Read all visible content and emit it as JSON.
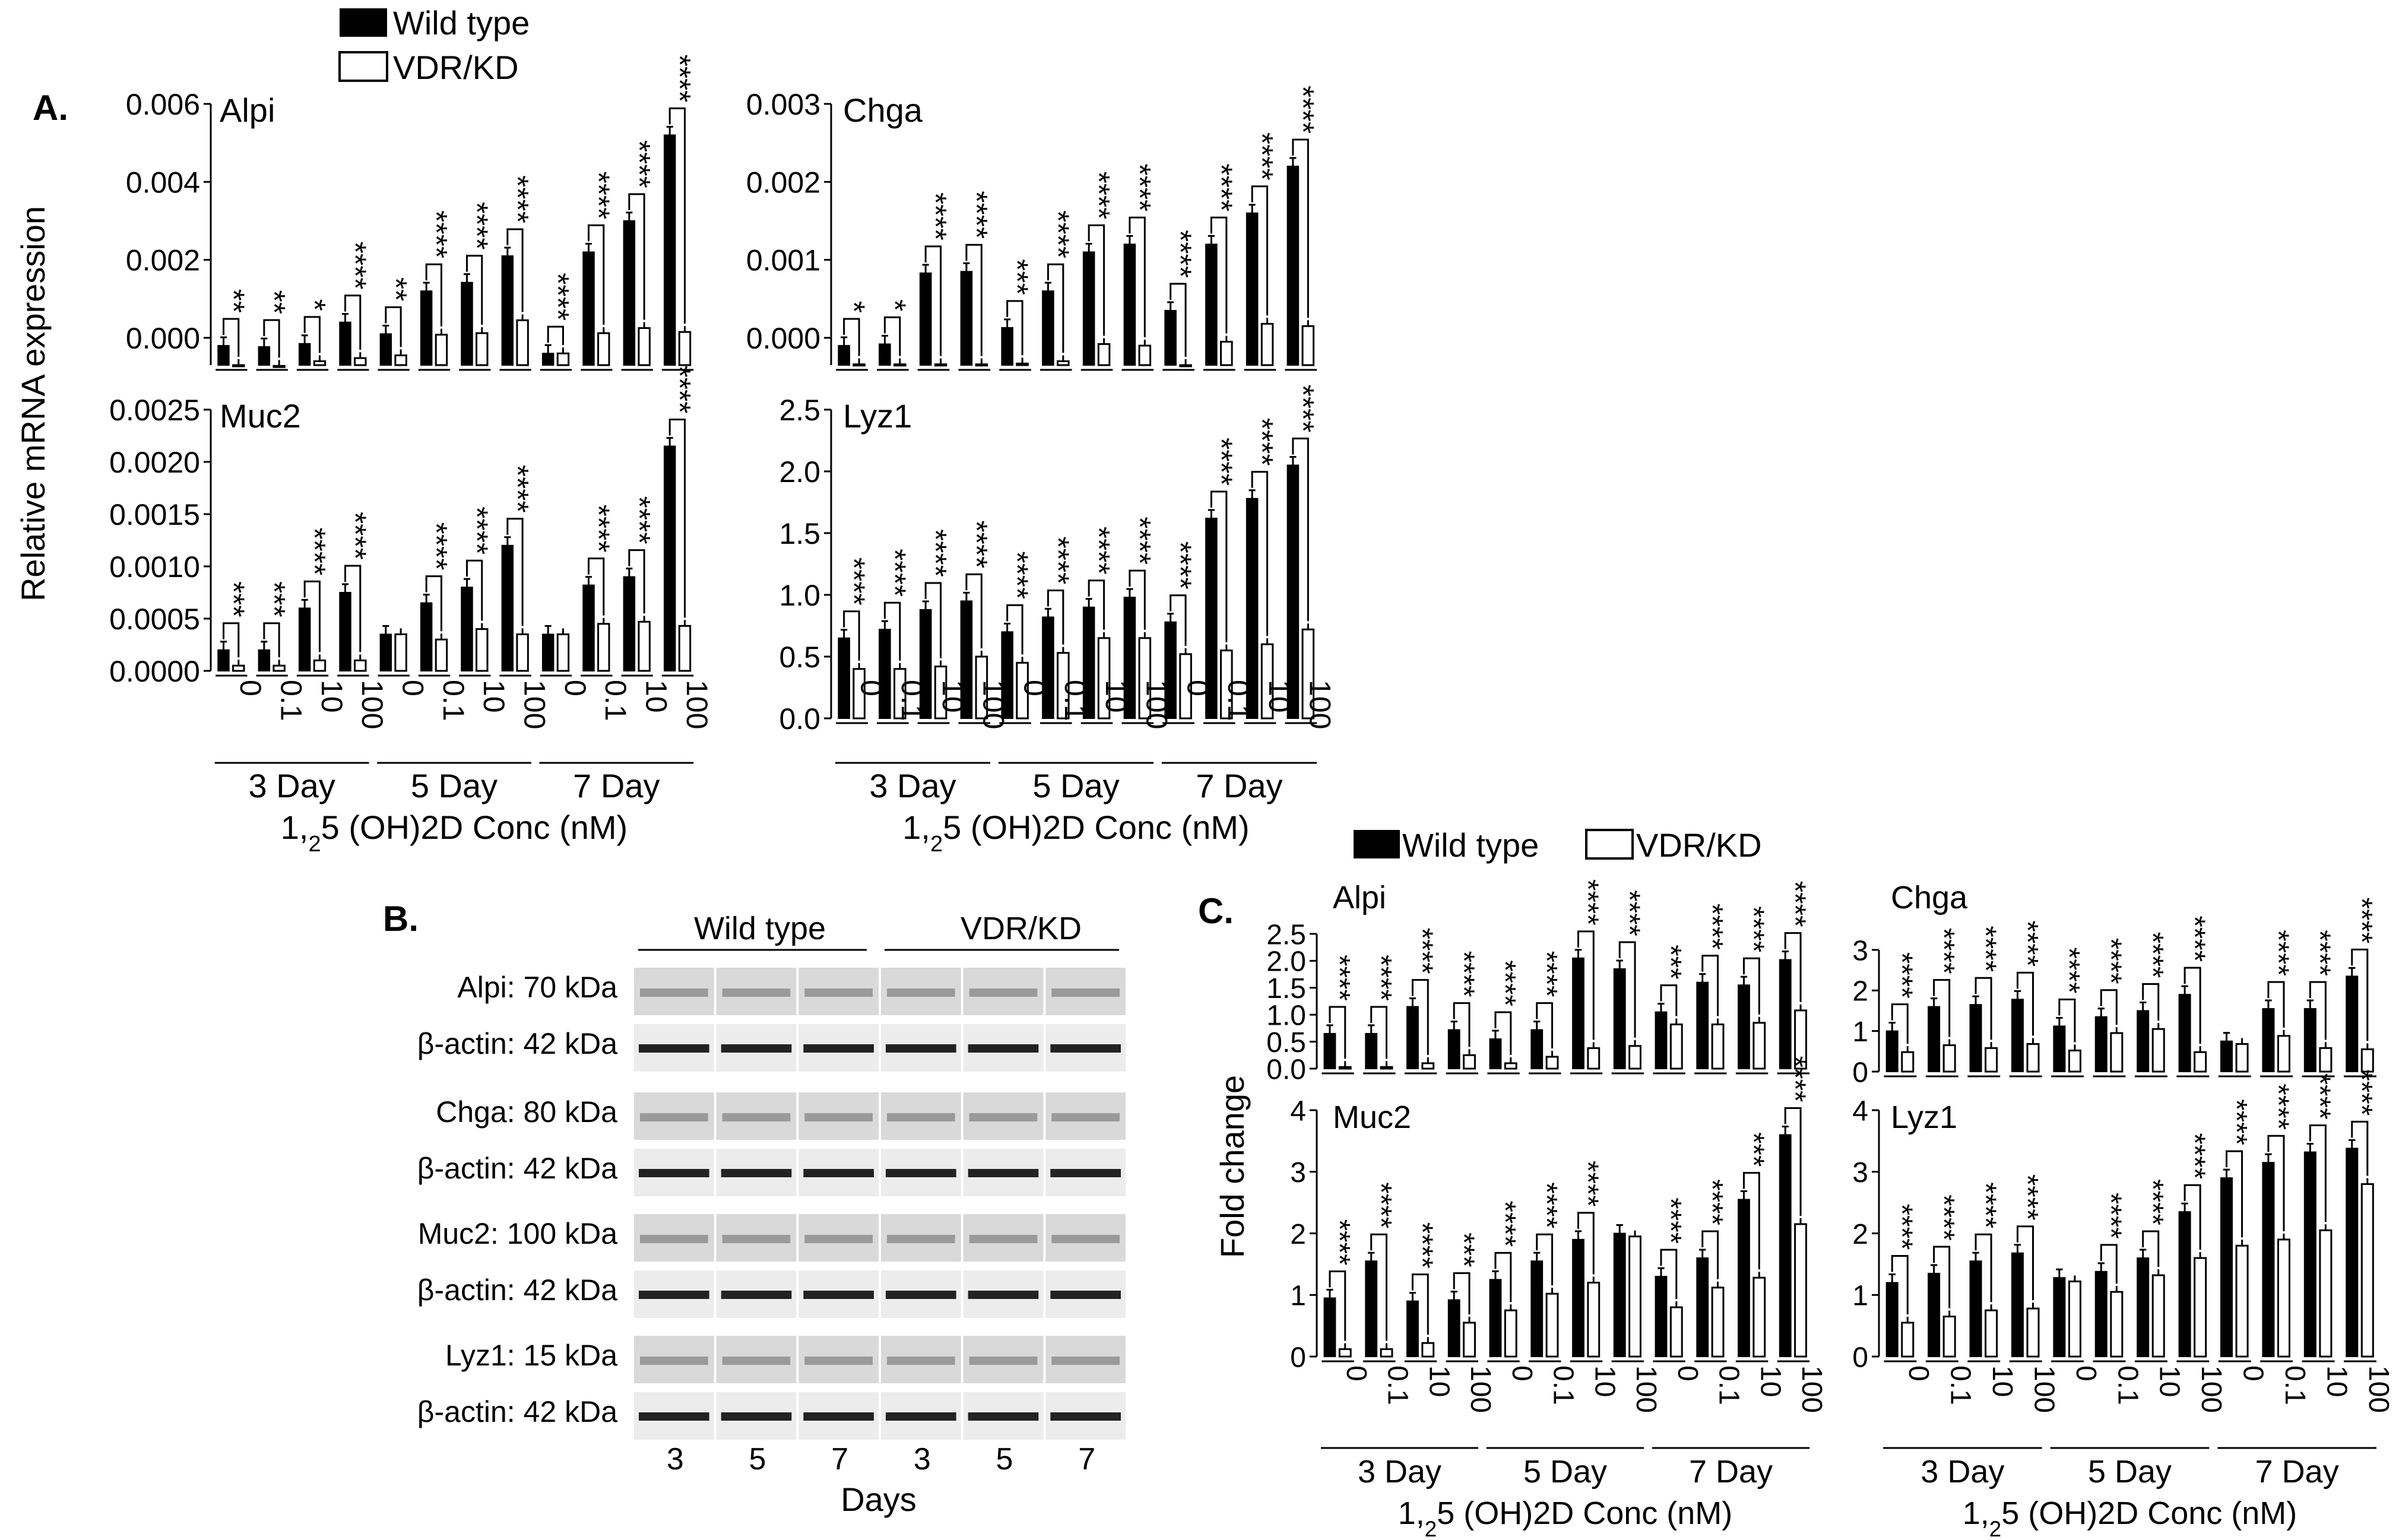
{
  "legend": {
    "wild_type": "Wild type",
    "vdr_kd": "VDR/KD"
  },
  "panels": {
    "a": "A.",
    "b": "B.",
    "c": "C."
  },
  "shared": {
    "ylabel_a": "Relative mRNA expression",
    "ylabel_c": "Fold change",
    "xlabel": "1,25 (OH)2D Conc (nM)",
    "day_labels": [
      "3 Day",
      "5 Day",
      "7 Day"
    ],
    "conc_labels": [
      "0",
      "0.1",
      "10",
      "100"
    ]
  },
  "chart_data": [
    {
      "id": "A-Alpi",
      "type": "bar",
      "title": "Alpi",
      "ylim": [
        -0.0007,
        0.006
      ],
      "ticks": [
        "0.000",
        "0.002",
        "0.004",
        "0.006"
      ],
      "tick_values": [
        0,
        0.002,
        0.004,
        0.006
      ],
      "categories": [
        "3 Day 0",
        "3 Day 0.1",
        "3 Day 10",
        "3 Day 100",
        "5 Day 0",
        "5 Day 0.1",
        "5 Day 10",
        "5 Day 100",
        "7 Day 0",
        "7 Day 0.1",
        "7 Day 10",
        "7 Day 100"
      ],
      "series": [
        {
          "name": "Wild type",
          "values": [
            -0.0002,
            -0.00023,
            -0.00015,
            0.0004,
            0.0001,
            0.0012,
            0.00142,
            0.0021,
            -0.0004,
            0.0022,
            0.003,
            0.0052
          ]
        },
        {
          "name": "VDR/KD",
          "values": [
            -0.0007,
            -0.00072,
            -0.0006,
            -0.00052,
            -0.00045,
            8e-05,
            0.00012,
            0.00045,
            -0.0004,
            0.00012,
            0.00025,
            0.00015
          ]
        }
      ],
      "sig": [
        "**",
        "**",
        "*",
        "****",
        "**",
        "****",
        "****",
        "****",
        "****",
        "****",
        "****",
        "****"
      ]
    },
    {
      "id": "A-Chga",
      "type": "bar",
      "title": "Chga",
      "ylim": [
        -0.00035,
        0.003
      ],
      "ticks": [
        "0.000",
        "0.001",
        "0.002",
        "0.003"
      ],
      "tick_values": [
        0,
        0.001,
        0.002,
        0.003
      ],
      "categories": [
        "3 Day 0",
        "3 Day 0.1",
        "3 Day 10",
        "3 Day 100",
        "5 Day 0",
        "5 Day 0.1",
        "5 Day 10",
        "5 Day 100",
        "7 Day 0",
        "7 Day 0.1",
        "7 Day 10",
        "7 Day 100"
      ],
      "series": [
        {
          "name": "Wild type",
          "values": [
            -0.0001,
            -8e-05,
            0.00083,
            0.00085,
            0.00013,
            0.0006,
            0.0011,
            0.0012,
            0.00035,
            0.0012,
            0.0016,
            0.0022
          ]
        },
        {
          "name": "VDR/KD",
          "values": [
            -0.00034,
            -0.00034,
            -0.00034,
            -0.00034,
            -0.00033,
            -0.0003,
            -8e-05,
            -0.0001,
            -0.00035,
            -5e-05,
            0.00018,
            0.00015
          ]
        }
      ],
      "sig": [
        "*",
        "*",
        "****",
        "****",
        "***",
        "****",
        "****",
        "****",
        "****",
        "****",
        "****",
        "****"
      ]
    },
    {
      "id": "A-Muc2",
      "type": "bar",
      "title": "Muc2",
      "ylim": [
        0,
        0.0025
      ],
      "ticks": [
        "0.0000",
        "0.0005",
        "0.0010",
        "0.0015",
        "0.0020",
        "0.0025"
      ],
      "tick_values": [
        0,
        0.0005,
        0.001,
        0.0015,
        0.002,
        0.0025
      ],
      "categories": [
        "3 Day 0",
        "3 Day 0.1",
        "3 Day 10",
        "3 Day 100",
        "5 Day 0",
        "5 Day 0.1",
        "5 Day 10",
        "5 Day 100",
        "7 Day 0",
        "7 Day 0.1",
        "7 Day 10",
        "7 Day 100"
      ],
      "series": [
        {
          "name": "Wild type",
          "values": [
            0.0002,
            0.0002,
            0.0006,
            0.00075,
            0.00035,
            0.00065,
            0.0008,
            0.0012,
            0.00035,
            0.00082,
            0.0009,
            0.00215
          ]
        },
        {
          "name": "VDR/KD",
          "values": [
            5e-05,
            5e-05,
            0.0001,
            0.0001,
            0.00035,
            0.0003,
            0.0004,
            0.00035,
            0.00035,
            0.00045,
            0.00047,
            0.00043
          ]
        }
      ],
      "sig": [
        "***",
        "***",
        "****",
        "****",
        "",
        "****",
        "****",
        "****",
        "",
        "****",
        "****",
        "****"
      ]
    },
    {
      "id": "A-Lyz1",
      "type": "bar",
      "title": "Lyz1",
      "ylim": [
        0,
        2.5
      ],
      "ticks": [
        "0.0",
        "0.5",
        "1.0",
        "1.5",
        "2.0",
        "2.5"
      ],
      "tick_values": [
        0,
        0.5,
        1.0,
        1.5,
        2.0,
        2.5
      ],
      "categories": [
        "3 Day 0",
        "3 Day 0.1",
        "3 Day 10",
        "3 Day 100",
        "5 Day 0",
        "5 Day 0.1",
        "5 Day 10",
        "5 Day 100",
        "7 Day 0",
        "7 Day 0.1",
        "7 Day 10",
        "7 Day 100"
      ],
      "series": [
        {
          "name": "Wild type",
          "values": [
            0.65,
            0.72,
            0.88,
            0.95,
            0.7,
            0.82,
            0.9,
            0.98,
            0.78,
            1.62,
            1.78,
            2.05
          ]
        },
        {
          "name": "VDR/KD",
          "values": [
            0.4,
            0.4,
            0.42,
            0.5,
            0.45,
            0.53,
            0.65,
            0.65,
            0.52,
            0.55,
            0.6,
            0.72
          ]
        }
      ],
      "sig": [
        "****",
        "****",
        "****",
        "****",
        "****",
        "****",
        "****",
        "****",
        "****",
        "****",
        "****",
        "****"
      ]
    },
    {
      "id": "C-Alpi",
      "type": "bar",
      "title": "Alpi",
      "ylim": [
        0,
        2.5
      ],
      "ticks": [
        "0.0",
        "0.5",
        "1.0",
        "1.5",
        "2.0",
        "2.5"
      ],
      "tick_values": [
        0,
        0.5,
        1.0,
        1.5,
        2.0,
        2.5
      ],
      "categories": [
        "3 Day 0",
        "3 Day 0.1",
        "3 Day 10",
        "3 Day 100",
        "5 Day 0",
        "5 Day 0.1",
        "5 Day 10",
        "5 Day 100",
        "7 Day 0",
        "7 Day 0.1",
        "7 Day 10",
        "7 Day 100"
      ],
      "series": [
        {
          "name": "Wild type",
          "values": [
            0.65,
            0.65,
            1.15,
            0.72,
            0.55,
            0.72,
            2.05,
            1.85,
            1.05,
            1.6,
            1.55,
            2.02
          ]
        },
        {
          "name": "VDR/KD",
          "values": [
            0.03,
            0.03,
            0.1,
            0.25,
            0.1,
            0.22,
            0.38,
            0.42,
            0.82,
            0.82,
            0.85,
            1.08
          ]
        }
      ],
      "sig": [
        "****",
        "****",
        "****",
        "****",
        "****",
        "****",
        "****",
        "****",
        "***",
        "****",
        "****",
        "****"
      ]
    },
    {
      "id": "C-Chga",
      "type": "bar",
      "title": "Chga",
      "ylim": [
        0,
        3
      ],
      "ticks": [
        "0",
        "1",
        "2",
        "3"
      ],
      "tick_values": [
        0,
        1,
        2,
        3
      ],
      "categories": [
        "3 Day 0",
        "3 Day 0.1",
        "3 Day 10",
        "3 Day 100",
        "5 Day 0",
        "5 Day 0.1",
        "5 Day 10",
        "5 Day 100",
        "7 Day 0",
        "7 Day 0.1",
        "7 Day 10",
        "7 Day 100"
      ],
      "series": [
        {
          "name": "Wild type",
          "values": [
            1.0,
            1.6,
            1.65,
            1.78,
            1.12,
            1.35,
            1.5,
            1.9,
            0.75,
            1.55,
            1.55,
            2.35
          ]
        },
        {
          "name": "VDR/KD",
          "values": [
            0.48,
            0.65,
            0.58,
            0.68,
            0.52,
            0.95,
            1.05,
            0.48,
            0.68,
            0.88,
            0.58,
            0.55
          ]
        }
      ],
      "sig": [
        "****",
        "****",
        "****",
        "****",
        "****",
        "****",
        "****",
        "****",
        "",
        "****",
        "****",
        "****"
      ]
    },
    {
      "id": "C-Muc2",
      "type": "bar",
      "title": "Muc2",
      "ylim": [
        0,
        4
      ],
      "ticks": [
        "0",
        "1",
        "2",
        "3",
        "4"
      ],
      "tick_values": [
        0,
        1,
        2,
        3,
        4
      ],
      "categories": [
        "3 Day 0",
        "3 Day 0.1",
        "3 Day 10",
        "3 Day 100",
        "5 Day 0",
        "5 Day 0.1",
        "5 Day 10",
        "5 Day 100",
        "7 Day 0",
        "7 Day 0.1",
        "7 Day 10",
        "7 Day 100"
      ],
      "series": [
        {
          "name": "Wild type",
          "values": [
            0.95,
            1.55,
            0.9,
            0.92,
            1.25,
            1.55,
            1.9,
            2.0,
            1.3,
            1.6,
            2.55,
            3.6
          ]
        },
        {
          "name": "VDR/KD",
          "values": [
            0.12,
            0.12,
            0.22,
            0.55,
            0.75,
            1.02,
            1.2,
            1.95,
            0.8,
            1.12,
            1.28,
            2.15
          ]
        }
      ],
      "sig": [
        "****",
        "****",
        "****",
        "***",
        "****",
        "****",
        "****",
        "",
        "****",
        "****",
        "***",
        "****"
      ]
    },
    {
      "id": "C-Lyz1",
      "type": "bar",
      "title": "Lyz1",
      "ylim": [
        0,
        4
      ],
      "ticks": [
        "0",
        "1",
        "2",
        "3",
        "4"
      ],
      "tick_values": [
        0,
        1,
        2,
        3,
        4
      ],
      "categories": [
        "3 Day 0",
        "3 Day 0.1",
        "3 Day 10",
        "3 Day 100",
        "5 Day 0",
        "5 Day 0.1",
        "5 Day 10",
        "5 Day 100",
        "7 Day 0",
        "7 Day 0.1",
        "7 Day 10",
        "7 Day 100"
      ],
      "series": [
        {
          "name": "Wild type",
          "values": [
            1.2,
            1.35,
            1.55,
            1.68,
            1.28,
            1.38,
            1.6,
            2.35,
            2.9,
            3.15,
            3.32,
            3.38
          ]
        },
        {
          "name": "VDR/KD",
          "values": [
            0.55,
            0.65,
            0.75,
            0.78,
            1.22,
            1.05,
            1.32,
            1.6,
            1.8,
            1.9,
            2.05,
            2.8
          ]
        }
      ],
      "sig": [
        "****",
        "****",
        "****",
        "****",
        "",
        "****",
        "****",
        "****",
        "****",
        "****",
        "****",
        "****"
      ]
    }
  ],
  "blot": {
    "header": [
      "Wild type",
      "VDR/KD"
    ],
    "rows": [
      {
        "protein": "Alpi: 70 kDa",
        "actin": "β-actin: 42 kDa"
      },
      {
        "protein": "Chga: 80 kDa",
        "actin": "β-actin: 42 kDa"
      },
      {
        "protein": "Muc2: 100 kDa",
        "actin": "β-actin: 42 kDa"
      },
      {
        "protein": "Lyz1: 15 kDa",
        "actin": "β-actin: 42 kDa"
      }
    ],
    "day_ticks": [
      "3",
      "5",
      "7",
      "3",
      "5",
      "7"
    ],
    "xlabel": "Days"
  }
}
